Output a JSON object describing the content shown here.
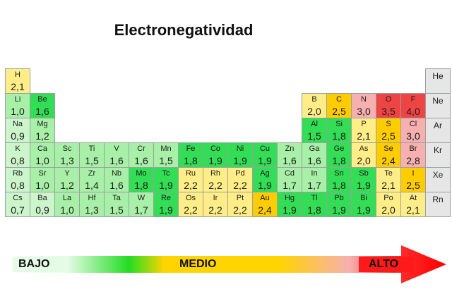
{
  "title": "Electronegatividad",
  "colors": {
    "low": "#ccf5cc",
    "light_green": "#a8efa8",
    "green": "#33dd55",
    "yellow": "#ffee88",
    "orange": "#ffcc00",
    "pink": "#f6b0b0",
    "red": "#ee4444",
    "noble": "#e6e6e6"
  },
  "elements": [
    {
      "sym": "H",
      "val": "2,1",
      "row": 1,
      "col": 1,
      "color": "yellow"
    },
    {
      "sym": "He",
      "val": "",
      "row": 1,
      "col": 18,
      "color": "noble"
    },
    {
      "sym": "Li",
      "val": "1,0",
      "row": 2,
      "col": 1,
      "color": "light_green"
    },
    {
      "sym": "Be",
      "val": "1,6",
      "row": 2,
      "col": 2,
      "color": "green"
    },
    {
      "sym": "B",
      "val": "2,0",
      "row": 2,
      "col": 13,
      "color": "yellow"
    },
    {
      "sym": "C",
      "val": "2,5",
      "row": 2,
      "col": 14,
      "color": "orange"
    },
    {
      "sym": "N",
      "val": "3,0",
      "row": 2,
      "col": 15,
      "color": "pink"
    },
    {
      "sym": "O",
      "val": "3,5",
      "row": 2,
      "col": 16,
      "color": "red"
    },
    {
      "sym": "F",
      "val": "4,0",
      "row": 2,
      "col": 17,
      "color": "red"
    },
    {
      "sym": "Ne",
      "val": "",
      "row": 2,
      "col": 18,
      "color": "noble"
    },
    {
      "sym": "Na",
      "val": "0,9",
      "row": 3,
      "col": 1,
      "color": "low"
    },
    {
      "sym": "Mg",
      "val": "1,2",
      "row": 3,
      "col": 2,
      "color": "light_green"
    },
    {
      "sym": "Al",
      "val": "1,5",
      "row": 3,
      "col": 13,
      "color": "green"
    },
    {
      "sym": "Si",
      "val": "1,8",
      "row": 3,
      "col": 14,
      "color": "green"
    },
    {
      "sym": "P",
      "val": "2,1",
      "row": 3,
      "col": 15,
      "color": "yellow"
    },
    {
      "sym": "S",
      "val": "2,5",
      "row": 3,
      "col": 16,
      "color": "orange"
    },
    {
      "sym": "Cl",
      "val": "3,0",
      "row": 3,
      "col": 17,
      "color": "pink"
    },
    {
      "sym": "Ar",
      "val": "",
      "row": 3,
      "col": 18,
      "color": "noble"
    },
    {
      "sym": "K",
      "val": "0,8",
      "row": 4,
      "col": 1,
      "color": "low"
    },
    {
      "sym": "Ca",
      "val": "1,0",
      "row": 4,
      "col": 2,
      "color": "light_green"
    },
    {
      "sym": "Sc",
      "val": "1,3",
      "row": 4,
      "col": 3,
      "color": "light_green"
    },
    {
      "sym": "Ti",
      "val": "1,5",
      "row": 4,
      "col": 4,
      "color": "light_green"
    },
    {
      "sym": "V",
      "val": "1,6",
      "row": 4,
      "col": 5,
      "color": "light_green"
    },
    {
      "sym": "Cr",
      "val": "1,6",
      "row": 4,
      "col": 6,
      "color": "light_green"
    },
    {
      "sym": "Mn",
      "val": "1,5",
      "row": 4,
      "col": 7,
      "color": "light_green"
    },
    {
      "sym": "Fe",
      "val": "1,8",
      "row": 4,
      "col": 8,
      "color": "green"
    },
    {
      "sym": "Co",
      "val": "1,9",
      "row": 4,
      "col": 9,
      "color": "green"
    },
    {
      "sym": "Ni",
      "val": "1,9",
      "row": 4,
      "col": 10,
      "color": "green"
    },
    {
      "sym": "Cu",
      "val": "1,9",
      "row": 4,
      "col": 11,
      "color": "green"
    },
    {
      "sym": "Zn",
      "val": "1,6",
      "row": 4,
      "col": 12,
      "color": "light_green"
    },
    {
      "sym": "Ga",
      "val": "1,6",
      "row": 4,
      "col": 13,
      "color": "light_green"
    },
    {
      "sym": "Ge",
      "val": "1,8",
      "row": 4,
      "col": 14,
      "color": "green"
    },
    {
      "sym": "As",
      "val": "2,0",
      "row": 4,
      "col": 15,
      "color": "yellow"
    },
    {
      "sym": "Se",
      "val": "2,4",
      "row": 4,
      "col": 16,
      "color": "orange"
    },
    {
      "sym": "Br",
      "val": "2,8",
      "row": 4,
      "col": 17,
      "color": "pink"
    },
    {
      "sym": "Kr",
      "val": "",
      "row": 4,
      "col": 18,
      "color": "noble"
    },
    {
      "sym": "Rb",
      "val": "0,8",
      "row": 5,
      "col": 1,
      "color": "low"
    },
    {
      "sym": "Sr",
      "val": "1,0",
      "row": 5,
      "col": 2,
      "color": "light_green"
    },
    {
      "sym": "Y",
      "val": "1,2",
      "row": 5,
      "col": 3,
      "color": "light_green"
    },
    {
      "sym": "Zr",
      "val": "1,4",
      "row": 5,
      "col": 4,
      "color": "light_green"
    },
    {
      "sym": "Nb",
      "val": "1,6",
      "row": 5,
      "col": 5,
      "color": "light_green"
    },
    {
      "sym": "Mo",
      "val": "1,8",
      "row": 5,
      "col": 6,
      "color": "green"
    },
    {
      "sym": "Tc",
      "val": "1,9",
      "row": 5,
      "col": 7,
      "color": "green"
    },
    {
      "sym": "Ru",
      "val": "2,2",
      "row": 5,
      "col": 8,
      "color": "yellow"
    },
    {
      "sym": "Rh",
      "val": "2,2",
      "row": 5,
      "col": 9,
      "color": "yellow"
    },
    {
      "sym": "Pd",
      "val": "2,2",
      "row": 5,
      "col": 10,
      "color": "yellow"
    },
    {
      "sym": "Ag",
      "val": "1,9",
      "row": 5,
      "col": 11,
      "color": "green"
    },
    {
      "sym": "Cd",
      "val": "1,7",
      "row": 5,
      "col": 12,
      "color": "light_green"
    },
    {
      "sym": "In",
      "val": "1,7",
      "row": 5,
      "col": 13,
      "color": "light_green"
    },
    {
      "sym": "Sn",
      "val": "1,8",
      "row": 5,
      "col": 14,
      "color": "green"
    },
    {
      "sym": "Sb",
      "val": "1,9",
      "row": 5,
      "col": 15,
      "color": "green"
    },
    {
      "sym": "Te",
      "val": "2,1",
      "row": 5,
      "col": 16,
      "color": "yellow"
    },
    {
      "sym": "I",
      "val": "2,5",
      "row": 5,
      "col": 17,
      "color": "orange"
    },
    {
      "sym": "Xe",
      "val": "",
      "row": 5,
      "col": 18,
      "color": "noble"
    },
    {
      "sym": "Cs",
      "val": "0,7",
      "row": 6,
      "col": 1,
      "color": "low"
    },
    {
      "sym": "Ba",
      "val": "0,9",
      "row": 6,
      "col": 2,
      "color": "low"
    },
    {
      "sym": "La",
      "val": "1,0",
      "row": 6,
      "col": 3,
      "color": "light_green"
    },
    {
      "sym": "Hf",
      "val": "1,3",
      "row": 6,
      "col": 4,
      "color": "light_green"
    },
    {
      "sym": "Ta",
      "val": "1,5",
      "row": 6,
      "col": 5,
      "color": "light_green"
    },
    {
      "sym": "W",
      "val": "1,7",
      "row": 6,
      "col": 6,
      "color": "light_green"
    },
    {
      "sym": "Re",
      "val": "1,9",
      "row": 6,
      "col": 7,
      "color": "green"
    },
    {
      "sym": "Os",
      "val": "2,2",
      "row": 6,
      "col": 8,
      "color": "yellow"
    },
    {
      "sym": "Ir",
      "val": "2,2",
      "row": 6,
      "col": 9,
      "color": "yellow"
    },
    {
      "sym": "Pt",
      "val": "2,2",
      "row": 6,
      "col": 10,
      "color": "yellow"
    },
    {
      "sym": "Au",
      "val": "2,4",
      "row": 6,
      "col": 11,
      "color": "orange"
    },
    {
      "sym": "Hg",
      "val": "1,9",
      "row": 6,
      "col": 12,
      "color": "green"
    },
    {
      "sym": "Tl",
      "val": "1,8",
      "row": 6,
      "col": 13,
      "color": "green"
    },
    {
      "sym": "Pb",
      "val": "1,9",
      "row": 6,
      "col": 14,
      "color": "green"
    },
    {
      "sym": "Bi",
      "val": "1,9",
      "row": 6,
      "col": 15,
      "color": "green"
    },
    {
      "sym": "Po",
      "val": "2,0",
      "row": 6,
      "col": 16,
      "color": "yellow"
    },
    {
      "sym": "At",
      "val": "2,1",
      "row": 6,
      "col": 17,
      "color": "yellow"
    },
    {
      "sym": "Rn",
      "val": "",
      "row": 6,
      "col": 18,
      "color": "noble"
    }
  ],
  "scale": {
    "low_label": "BAJO",
    "mid_label": "MEDIO",
    "high_label": "ALTO"
  }
}
